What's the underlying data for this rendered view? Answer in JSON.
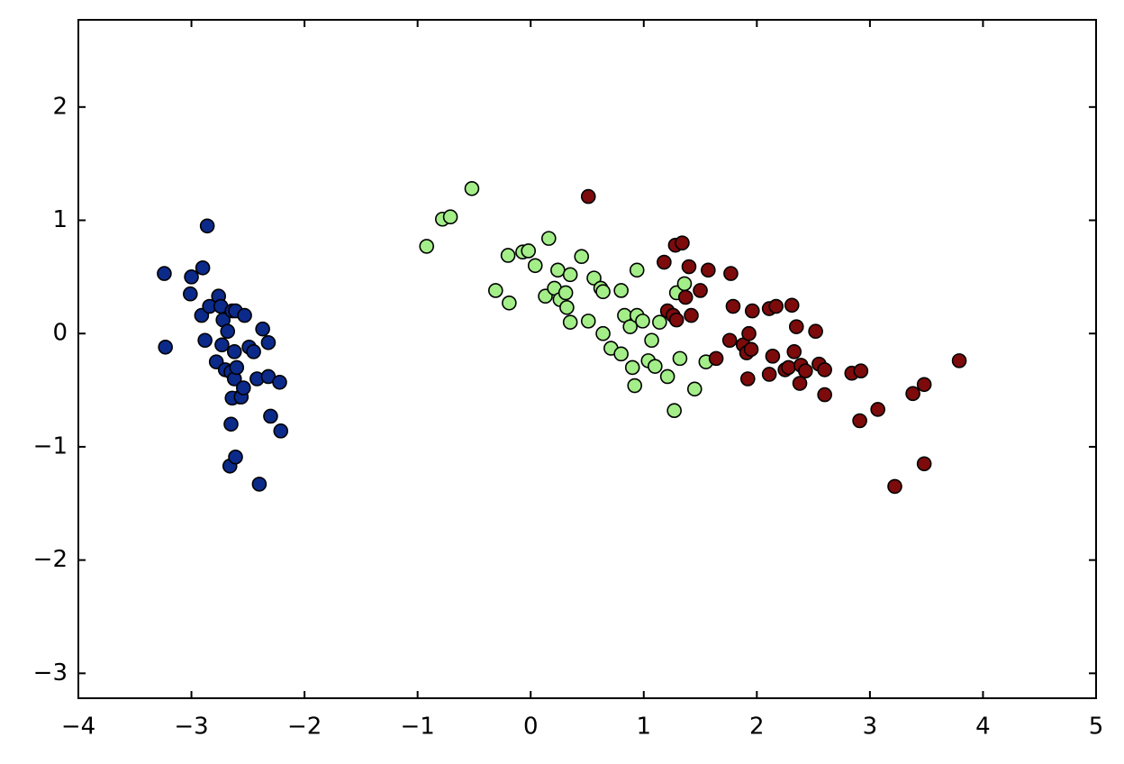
{
  "chart_data": {
    "type": "scatter",
    "xlim": [
      -4,
      5
    ],
    "ylim": [
      -3.22,
      2.77
    ],
    "xticks": [
      {
        "value": -4,
        "label": "−4"
      },
      {
        "value": -3,
        "label": "−3"
      },
      {
        "value": -2,
        "label": "−2"
      },
      {
        "value": -1,
        "label": "−1"
      },
      0,
      1,
      2,
      3,
      4,
      5
    ],
    "yticks": [
      {
        "value": -3,
        "label": "−3"
      },
      {
        "value": -2,
        "label": "−2"
      },
      {
        "value": -1,
        "label": "−1"
      },
      0,
      1,
      2
    ],
    "grid": false,
    "series": [
      {
        "color": "#0b2a8a",
        "x": [
          -3.24,
          -3.23,
          -3.0,
          -3.01,
          -2.9,
          -2.86,
          -2.91,
          -2.88,
          -2.84,
          -2.78,
          -2.76,
          -2.74,
          -2.72,
          -2.73,
          -2.7,
          -2.68,
          -2.64,
          -2.62,
          -2.61,
          -2.65,
          -2.62,
          -2.6,
          -2.57,
          -2.64,
          -2.65,
          -2.66,
          -2.61,
          -2.56,
          -2.53,
          -2.54,
          -2.49,
          -2.45,
          -2.42,
          -2.37,
          -2.32,
          -2.32,
          -2.3,
          -2.22,
          -2.21,
          -2.4
        ],
        "values": [
          0.53,
          -0.12,
          0.5,
          0.35,
          0.58,
          0.95,
          0.16,
          -0.06,
          0.24,
          -0.25,
          0.33,
          0.24,
          0.12,
          -0.1,
          -0.32,
          0.02,
          0.2,
          -0.16,
          0.2,
          -0.34,
          -0.4,
          -0.3,
          -0.56,
          -0.57,
          -0.8,
          -1.17,
          -1.09,
          -0.56,
          0.16,
          -0.48,
          -0.12,
          -0.16,
          -0.4,
          0.04,
          -0.08,
          -0.38,
          -0.73,
          -0.43,
          -0.86,
          -1.33
        ]
      },
      {
        "color": "#a3ee88",
        "x": [
          -0.92,
          -0.78,
          -0.71,
          -0.52,
          -0.31,
          -0.19,
          -0.2,
          -0.07,
          -0.02,
          0.04,
          0.16,
          0.13,
          0.24,
          0.21,
          0.26,
          0.31,
          0.32,
          0.35,
          0.35,
          0.45,
          0.51,
          0.56,
          0.62,
          0.64,
          0.64,
          0.71,
          0.8,
          0.8,
          0.83,
          0.88,
          0.9,
          0.92,
          0.94,
          0.94,
          0.99,
          1.04,
          1.07,
          1.1,
          1.14,
          1.21,
          1.27,
          1.29,
          1.32,
          1.36,
          1.45,
          1.55
        ],
        "values": [
          0.77,
          1.01,
          1.03,
          1.28,
          0.38,
          0.27,
          0.69,
          0.72,
          0.73,
          0.6,
          0.84,
          0.33,
          0.56,
          0.4,
          0.3,
          0.36,
          0.23,
          0.52,
          0.1,
          0.68,
          0.11,
          0.49,
          0.4,
          0.0,
          0.37,
          -0.13,
          0.38,
          -0.18,
          0.16,
          0.06,
          -0.3,
          -0.46,
          0.56,
          0.16,
          0.11,
          -0.24,
          -0.06,
          -0.29,
          0.1,
          -0.38,
          -0.68,
          0.36,
          -0.22,
          0.44,
          -0.49,
          -0.25
        ]
      },
      {
        "color": "#7d0b0b",
        "x": [
          0.51,
          1.18,
          1.21,
          1.26,
          1.28,
          1.29,
          1.34,
          1.37,
          1.4,
          1.42,
          1.5,
          1.57,
          1.64,
          1.76,
          1.77,
          1.79,
          1.88,
          1.91,
          1.92,
          1.93,
          1.95,
          1.96,
          2.11,
          2.11,
          2.14,
          2.17,
          2.25,
          2.28,
          2.31,
          2.33,
          2.35,
          2.38,
          2.39,
          2.43,
          2.52,
          2.55,
          2.6,
          2.6,
          2.84,
          2.92,
          2.91,
          3.07,
          3.22,
          3.38,
          3.48,
          3.48,
          3.79
        ],
        "values": [
          1.21,
          0.63,
          0.2,
          0.16,
          0.78,
          0.12,
          0.8,
          0.32,
          0.59,
          0.16,
          0.38,
          0.56,
          -0.22,
          -0.06,
          0.53,
          0.24,
          -0.1,
          -0.17,
          -0.4,
          0.0,
          -0.14,
          0.2,
          -0.36,
          0.22,
          -0.2,
          0.24,
          -0.32,
          -0.3,
          0.25,
          -0.16,
          0.06,
          -0.44,
          -0.28,
          -0.33,
          0.02,
          -0.27,
          -0.32,
          -0.54,
          -0.35,
          -0.33,
          -0.77,
          -0.67,
          -1.35,
          -0.53,
          -0.45,
          -1.15,
          -0.24
        ]
      }
    ]
  }
}
